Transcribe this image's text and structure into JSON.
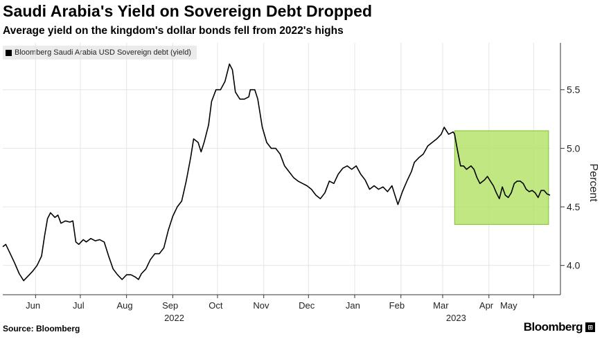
{
  "header": {
    "title": "Saudi Arabia's Yield on Sovereign Debt Dropped",
    "subtitle": "Average yield on the kingdom's dollar bonds fell from 2022's highs"
  },
  "footer": {
    "source": "Source: Bloomberg",
    "brand": "Bloomberg",
    "brand_badge": "⊞"
  },
  "colors": {
    "line": "#000000",
    "highlight_fill": "#b5e36b",
    "highlight_stroke": "#7fbf2a",
    "grid": "#e4e4e4",
    "axis": "#333333"
  },
  "chart_data": {
    "type": "line",
    "title": "Saudi Arabia's Yield on Sovereign Debt Dropped",
    "subtitle": "Average yield on the kingdom's dollar bonds fell from 2022's highs",
    "ylabel": "Percent",
    "xlabel": "",
    "ylim": [
      3.75,
      5.9
    ],
    "y_ticks": [
      4.0,
      4.5,
      5.0,
      5.5
    ],
    "y_tick_labels": [
      "4.0",
      "4.5",
      "5.0",
      "5.5"
    ],
    "x_range": [
      "2022-05-10",
      "2023-05-12"
    ],
    "x_ticks": [
      {
        "label": "Jun",
        "date": "2022-06-01"
      },
      {
        "label": "Jul",
        "date": "2022-07-01"
      },
      {
        "label": "Aug",
        "date": "2022-08-01"
      },
      {
        "label": "Sep",
        "date": "2022-09-01"
      },
      {
        "label": "Oct",
        "date": "2022-10-01"
      },
      {
        "label": "Nov",
        "date": "2022-11-01"
      },
      {
        "label": "Dec",
        "date": "2022-12-01"
      },
      {
        "label": "Jan",
        "date": "2023-01-01"
      },
      {
        "label": "Feb",
        "date": "2023-02-01"
      },
      {
        "label": "Mar",
        "date": "2023-03-01"
      },
      {
        "label": "Apr",
        "date": "2023-04-01"
      },
      {
        "label": "May",
        "date": "2023-05-01"
      }
    ],
    "year_labels": [
      {
        "label": "2022",
        "date": "2022-09-02"
      },
      {
        "label": "2023",
        "date": "2023-03-10"
      }
    ],
    "legend_position": "top-left",
    "grid": true,
    "series": [
      {
        "name": "Bloomberg Saudi Arabia USD Sovereign debt (yield)",
        "points": [
          [
            "2022-05-10",
            4.16
          ],
          [
            "2022-05-12",
            4.18
          ],
          [
            "2022-05-15",
            4.1
          ],
          [
            "2022-05-18",
            4.02
          ],
          [
            "2022-05-21",
            3.93
          ],
          [
            "2022-05-24",
            3.87
          ],
          [
            "2022-05-27",
            3.91
          ],
          [
            "2022-05-30",
            3.95
          ],
          [
            "2022-06-02",
            4.0
          ],
          [
            "2022-06-05",
            4.08
          ],
          [
            "2022-06-07",
            4.25
          ],
          [
            "2022-06-09",
            4.4
          ],
          [
            "2022-06-11",
            4.45
          ],
          [
            "2022-06-14",
            4.41
          ],
          [
            "2022-06-16",
            4.43
          ],
          [
            "2022-06-18",
            4.36
          ],
          [
            "2022-06-21",
            4.38
          ],
          [
            "2022-06-24",
            4.37
          ],
          [
            "2022-06-26",
            4.38
          ],
          [
            "2022-06-28",
            4.2
          ],
          [
            "2022-06-30",
            4.18
          ],
          [
            "2022-07-03",
            4.22
          ],
          [
            "2022-07-05",
            4.2
          ],
          [
            "2022-07-08",
            4.23
          ],
          [
            "2022-07-11",
            4.21
          ],
          [
            "2022-07-14",
            4.22
          ],
          [
            "2022-07-17",
            4.2
          ],
          [
            "2022-07-20",
            4.08
          ],
          [
            "2022-07-23",
            3.97
          ],
          [
            "2022-07-26",
            3.92
          ],
          [
            "2022-07-29",
            3.88
          ],
          [
            "2022-08-01",
            3.92
          ],
          [
            "2022-08-04",
            3.92
          ],
          [
            "2022-08-07",
            3.9
          ],
          [
            "2022-08-09",
            3.88
          ],
          [
            "2022-08-11",
            3.93
          ],
          [
            "2022-08-14",
            3.97
          ],
          [
            "2022-08-17",
            4.05
          ],
          [
            "2022-08-20",
            4.1
          ],
          [
            "2022-08-23",
            4.1
          ],
          [
            "2022-08-26",
            4.15
          ],
          [
            "2022-08-29",
            4.3
          ],
          [
            "2022-09-01",
            4.42
          ],
          [
            "2022-09-04",
            4.5
          ],
          [
            "2022-09-07",
            4.55
          ],
          [
            "2022-09-10",
            4.72
          ],
          [
            "2022-09-13",
            4.92
          ],
          [
            "2022-09-15",
            5.08
          ],
          [
            "2022-09-18",
            5.05
          ],
          [
            "2022-09-20",
            4.97
          ],
          [
            "2022-09-22",
            5.05
          ],
          [
            "2022-09-25",
            5.2
          ],
          [
            "2022-09-27",
            5.4
          ],
          [
            "2022-09-30",
            5.5
          ],
          [
            "2022-10-03",
            5.5
          ],
          [
            "2022-10-06",
            5.57
          ],
          [
            "2022-10-09",
            5.72
          ],
          [
            "2022-10-11",
            5.67
          ],
          [
            "2022-10-13",
            5.48
          ],
          [
            "2022-10-16",
            5.42
          ],
          [
            "2022-10-19",
            5.42
          ],
          [
            "2022-10-22",
            5.44
          ],
          [
            "2022-10-23",
            5.5
          ],
          [
            "2022-10-26",
            5.5
          ],
          [
            "2022-10-28",
            5.42
          ],
          [
            "2022-10-31",
            5.18
          ],
          [
            "2022-11-03",
            5.05
          ],
          [
            "2022-11-06",
            5.0
          ],
          [
            "2022-11-09",
            5.0
          ],
          [
            "2022-11-12",
            4.95
          ],
          [
            "2022-11-15",
            4.85
          ],
          [
            "2022-11-18",
            4.8
          ],
          [
            "2022-11-21",
            4.75
          ],
          [
            "2022-11-24",
            4.72
          ],
          [
            "2022-11-27",
            4.7
          ],
          [
            "2022-11-30",
            4.68
          ],
          [
            "2022-12-03",
            4.65
          ],
          [
            "2022-12-06",
            4.6
          ],
          [
            "2022-12-09",
            4.57
          ],
          [
            "2022-12-12",
            4.62
          ],
          [
            "2022-12-15",
            4.72
          ],
          [
            "2022-12-18",
            4.7
          ],
          [
            "2022-12-21",
            4.78
          ],
          [
            "2022-12-24",
            4.83
          ],
          [
            "2022-12-27",
            4.85
          ],
          [
            "2022-12-30",
            4.82
          ],
          [
            "2023-01-02",
            4.85
          ],
          [
            "2023-01-05",
            4.78
          ],
          [
            "2023-01-08",
            4.73
          ],
          [
            "2023-01-11",
            4.65
          ],
          [
            "2023-01-14",
            4.68
          ],
          [
            "2023-01-17",
            4.65
          ],
          [
            "2023-01-20",
            4.67
          ],
          [
            "2023-01-23",
            4.63
          ],
          [
            "2023-01-26",
            4.68
          ],
          [
            "2023-01-28",
            4.6
          ],
          [
            "2023-01-30",
            4.52
          ],
          [
            "2023-02-02",
            4.63
          ],
          [
            "2023-02-05",
            4.72
          ],
          [
            "2023-02-08",
            4.8
          ],
          [
            "2023-02-10",
            4.88
          ],
          [
            "2023-02-13",
            4.92
          ],
          [
            "2023-02-16",
            4.95
          ],
          [
            "2023-02-19",
            5.02
          ],
          [
            "2023-02-22",
            5.05
          ],
          [
            "2023-02-25",
            5.08
          ],
          [
            "2023-02-28",
            5.12
          ],
          [
            "2023-03-02",
            5.18
          ],
          [
            "2023-03-05",
            5.12
          ],
          [
            "2023-03-08",
            5.14
          ],
          [
            "2023-03-09",
            5.12
          ],
          [
            "2023-03-11",
            4.98
          ],
          [
            "2023-03-13",
            4.85
          ],
          [
            "2023-03-15",
            4.85
          ],
          [
            "2023-03-17",
            4.82
          ],
          [
            "2023-03-20",
            4.85
          ],
          [
            "2023-03-22",
            4.82
          ],
          [
            "2023-03-24",
            4.75
          ],
          [
            "2023-03-26",
            4.7
          ],
          [
            "2023-03-29",
            4.73
          ],
          [
            "2023-03-31",
            4.76
          ],
          [
            "2023-04-02",
            4.72
          ],
          [
            "2023-04-04",
            4.68
          ],
          [
            "2023-04-06",
            4.62
          ],
          [
            "2023-04-08",
            4.57
          ],
          [
            "2023-04-10",
            4.67
          ],
          [
            "2023-04-12",
            4.6
          ],
          [
            "2023-04-14",
            4.58
          ],
          [
            "2023-04-16",
            4.62
          ],
          [
            "2023-04-18",
            4.7
          ],
          [
            "2023-04-20",
            4.72
          ],
          [
            "2023-04-22",
            4.72
          ],
          [
            "2023-04-24",
            4.7
          ],
          [
            "2023-04-26",
            4.65
          ],
          [
            "2023-04-28",
            4.63
          ],
          [
            "2023-04-30",
            4.64
          ],
          [
            "2023-05-02",
            4.62
          ],
          [
            "2023-05-04",
            4.58
          ],
          [
            "2023-05-06",
            4.64
          ],
          [
            "2023-05-08",
            4.64
          ],
          [
            "2023-05-10",
            4.61
          ],
          [
            "2023-05-12",
            4.6
          ]
        ]
      }
    ],
    "highlight": {
      "x": [
        "2023-03-09",
        "2023-05-11"
      ],
      "y": [
        4.35,
        5.15
      ]
    }
  }
}
